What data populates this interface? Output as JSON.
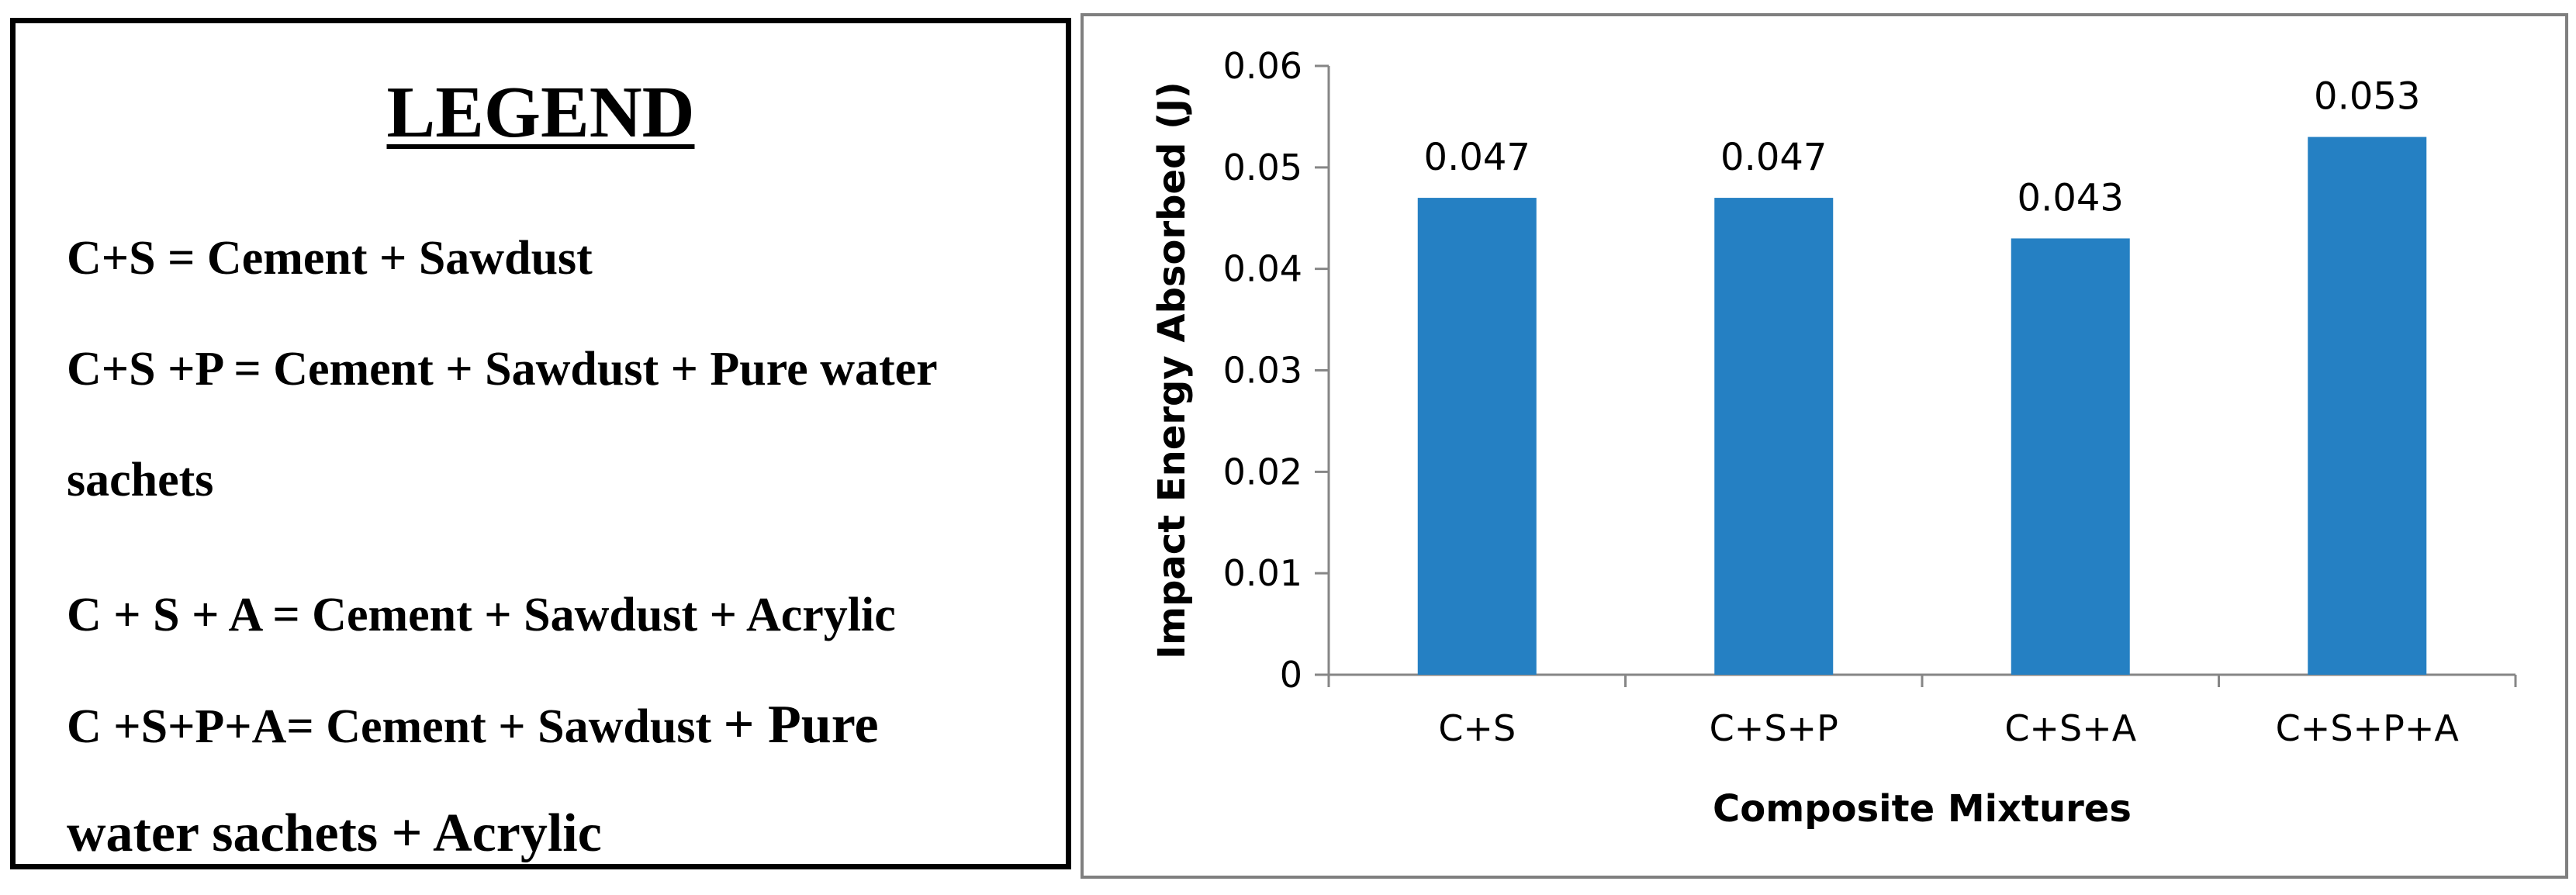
{
  "legend": {
    "title": "LEGEND",
    "line1": "C+S = Cement + Sawdust",
    "line2": "C+S +P = Cement + Sawdust + Pure water",
    "line3": "sachets",
    "line4": "C + S + A = Cement + Sawdust + Acrylic",
    "line5a": "C +S+P+A= Cement + Sawdust ",
    "line5b": "+ Pure",
    "line6": "water sachets + Acrylic"
  },
  "chart_data": {
    "type": "bar",
    "categories": [
      "C+S",
      "C+S+P",
      "C+S+A",
      "C+S+P+A"
    ],
    "values": [
      0.047,
      0.047,
      0.043,
      0.053
    ],
    "data_labels": [
      "0.047",
      "0.047",
      "0.043",
      "0.053"
    ],
    "title": "",
    "xlabel": "Composite Mixtures",
    "ylabel": "Impact Energy Absorbed (J)",
    "ylim": [
      0,
      0.06
    ],
    "yticks": [
      0,
      0.01,
      0.02,
      0.03,
      0.04,
      0.05,
      0.06
    ],
    "ytick_labels": [
      "0",
      "0.01",
      "0.02",
      "0.03",
      "0.04",
      "0.05",
      "0.06"
    ],
    "bar_color": "#2580C3",
    "grid": false
  }
}
